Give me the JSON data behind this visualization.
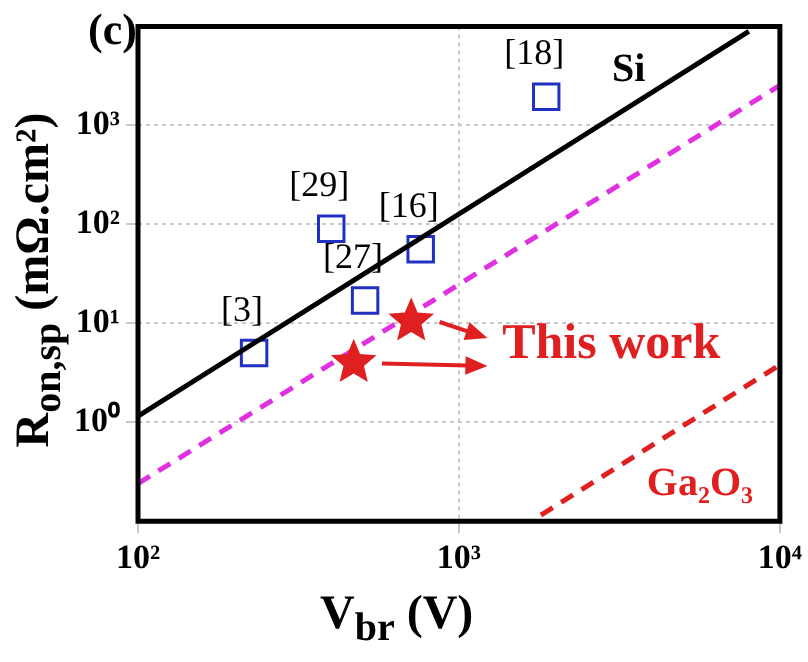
{
  "chart_data": {
    "type": "scatter",
    "xlabel": "V$_{br}$ (V)",
    "ylabel": "R$_{on,sp}$ (mΩ.cm²)",
    "log": "xy",
    "grid": true,
    "legend": false,
    "xlim": [
      100,
      10000
    ],
    "ylim": [
      0.1,
      10000
    ],
    "xticks": [
      {
        "value": 100,
        "label": "10²"
      },
      {
        "value": 1000,
        "label": "10³"
      },
      {
        "value": 10000,
        "label": "10⁴"
      }
    ],
    "yticks": [
      {
        "value": 1,
        "label": "10⁰"
      },
      {
        "value": 10,
        "label": "10¹"
      },
      {
        "value": 100,
        "label": "10²"
      },
      {
        "value": 1000,
        "label": "10³"
      }
    ],
    "series": [
      {
        "name": "Si",
        "type": "line",
        "color": "#000000",
        "line_style": "solid",
        "marker": "none",
        "x": [
          100,
          8000
        ],
        "values": [
          1.15,
          8900
        ]
      },
      {
        "type": "line",
        "color": "#e030e0",
        "line_style": "dashed",
        "marker": "none",
        "x": [
          100,
          10000
        ],
        "values": [
          0.24,
          2540
        ]
      },
      {
        "name": "Ga₂O₃",
        "type": "line",
        "color": "#e02020",
        "line_style": "dashed",
        "marker": "none",
        "x": [
          1800,
          10000
        ],
        "values": [
          0.115,
          3.8
        ]
      },
      {
        "color": "#2030c0",
        "marker": "square",
        "x": [
          230,
          400,
          510,
          760,
          1870
        ],
        "values": [
          5,
          90,
          17,
          56,
          1950
        ]
      },
      {
        "color": "#e02020",
        "marker": "star",
        "x": [
          470,
          710
        ],
        "values": [
          4.0,
          10.5
        ]
      }
    ],
    "annotations": [
      "(c)",
      {
        "text": "This work",
        "x": 710,
        "y": 10.5
      },
      {
        "text": "[3]",
        "x": 230,
        "y": 5
      },
      {
        "text": "[29]",
        "x": 400,
        "y": 90
      },
      {
        "text": "[27]",
        "x": 510,
        "y": 17
      },
      {
        "text": "[16]",
        "x": 760,
        "y": 56
      },
      {
        "text": "[18]",
        "x": 1870,
        "y": 1950
      }
    ]
  }
}
